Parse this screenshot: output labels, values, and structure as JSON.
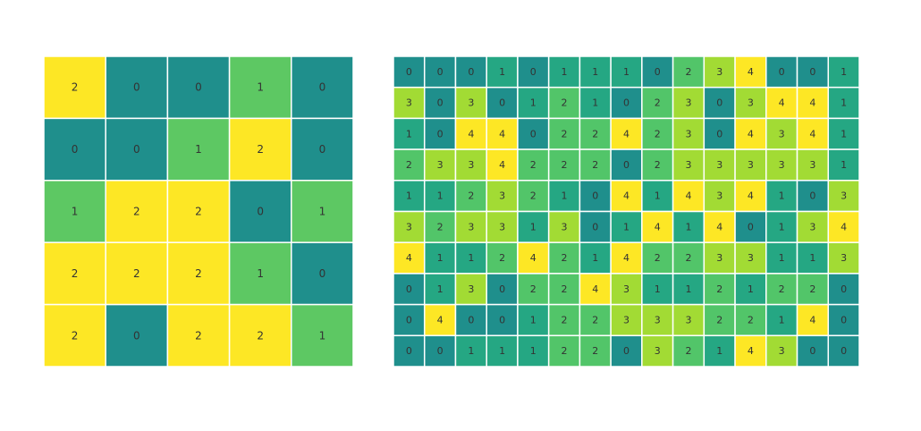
{
  "chart_data": [
    {
      "type": "heatmap",
      "title": "",
      "xlabel": "",
      "ylabel": "",
      "value_range": [
        0,
        2
      ],
      "colors": {
        "0": "#1f8f8c",
        "1": "#5dc863",
        "2": "#fde725"
      },
      "values": [
        [
          2,
          0,
          0,
          1,
          0
        ],
        [
          0,
          0,
          1,
          2,
          0
        ],
        [
          1,
          2,
          2,
          0,
          1
        ],
        [
          2,
          2,
          2,
          1,
          0
        ],
        [
          2,
          0,
          2,
          2,
          1
        ]
      ]
    },
    {
      "type": "heatmap",
      "title": "",
      "xlabel": "",
      "ylabel": "",
      "value_range": [
        0,
        4
      ],
      "colors": {
        "0": "#1f8f8c",
        "1": "#25a783",
        "2": "#52c569",
        "3": "#a2db34",
        "4": "#fde725"
      },
      "values": [
        [
          0,
          0,
          0,
          1,
          0,
          1,
          1,
          1,
          0,
          2,
          3,
          4,
          0,
          0,
          1
        ],
        [
          3,
          0,
          3,
          0,
          1,
          2,
          1,
          0,
          2,
          3,
          0,
          3,
          4,
          4,
          1
        ],
        [
          1,
          0,
          4,
          4,
          0,
          2,
          2,
          4,
          2,
          3,
          0,
          4,
          3,
          4,
          1
        ],
        [
          2,
          3,
          3,
          4,
          2,
          2,
          2,
          0,
          2,
          3,
          3,
          3,
          3,
          3,
          1
        ],
        [
          1,
          1,
          2,
          3,
          2,
          1,
          0,
          4,
          1,
          4,
          3,
          4,
          1,
          0,
          3
        ],
        [
          3,
          2,
          3,
          3,
          1,
          3,
          0,
          1,
          4,
          1,
          4,
          0,
          1,
          3,
          4
        ],
        [
          4,
          1,
          1,
          2,
          4,
          2,
          1,
          4,
          2,
          2,
          3,
          3,
          1,
          1,
          3
        ],
        [
          0,
          1,
          3,
          0,
          2,
          2,
          4,
          3,
          1,
          1,
          2,
          1,
          2,
          2,
          0
        ],
        [
          0,
          4,
          0,
          0,
          1,
          2,
          2,
          3,
          3,
          3,
          2,
          2,
          1,
          4,
          0
        ],
        [
          0,
          0,
          1,
          1,
          1,
          2,
          2,
          0,
          3,
          2,
          1,
          4,
          3,
          0,
          0
        ]
      ]
    }
  ]
}
